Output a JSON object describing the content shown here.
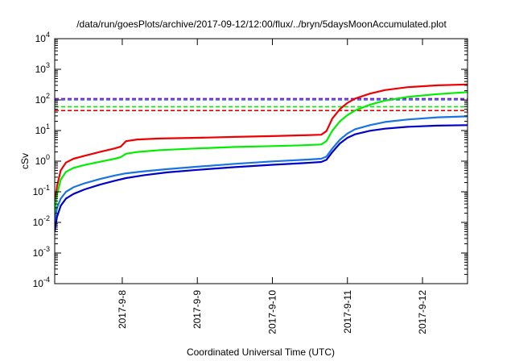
{
  "chart_data": {
    "type": "line",
    "title": "/data/run/goesPlots/archive/2017-09-12/12:00/flux/../bryn/5daysMoonAccumulated.plot",
    "xlabel": "Coordinated Universal Time (UTC)",
    "ylabel": "cSv",
    "yscale": "log",
    "ylim": [
      0.0001,
      10000
    ],
    "xlim": [
      7.1,
      12.6
    ],
    "x_ticks": [
      {
        "value": 8,
        "label": "2017-9-8"
      },
      {
        "value": 9,
        "label": "2017-9-9"
      },
      {
        "value": 10,
        "label": "2017-9-10"
      },
      {
        "value": 11,
        "label": "2017-9-11"
      },
      {
        "value": 12,
        "label": "2017-9-12"
      }
    ],
    "y_ticks": [
      {
        "value": 0.0001,
        "base": "10",
        "exp": "-4"
      },
      {
        "value": 0.001,
        "base": "10",
        "exp": "-3"
      },
      {
        "value": 0.01,
        "base": "10",
        "exp": "-2"
      },
      {
        "value": 0.1,
        "base": "10",
        "exp": "-1"
      },
      {
        "value": 1,
        "base": "10",
        "exp": "0"
      },
      {
        "value": 10,
        "base": "10",
        "exp": "1"
      },
      {
        "value": 100,
        "base": "10",
        "exp": "2"
      },
      {
        "value": 1000,
        "base": "10",
        "exp": "3"
      },
      {
        "value": 10000,
        "base": "10",
        "exp": "4"
      }
    ],
    "grid": false,
    "legend": "none",
    "series": [
      {
        "color": "#ee0000",
        "points": [
          [
            7.1,
            0.03
          ],
          [
            7.13,
            0.15
          ],
          [
            7.18,
            0.5
          ],
          [
            7.25,
            0.9
          ],
          [
            7.35,
            1.2
          ],
          [
            7.5,
            1.5
          ],
          [
            7.7,
            2.0
          ],
          [
            7.9,
            2.6
          ],
          [
            7.98,
            3.0
          ],
          [
            8.05,
            4.5
          ],
          [
            8.2,
            5.1
          ],
          [
            8.5,
            5.5
          ],
          [
            9.0,
            5.8
          ],
          [
            9.5,
            6.2
          ],
          [
            10.0,
            6.6
          ],
          [
            10.4,
            7.0
          ],
          [
            10.65,
            7.3
          ],
          [
            10.72,
            9.5
          ],
          [
            10.8,
            25
          ],
          [
            10.9,
            50
          ],
          [
            11.0,
            80
          ],
          [
            11.1,
            110
          ],
          [
            11.3,
            160
          ],
          [
            11.5,
            210
          ],
          [
            11.8,
            260
          ],
          [
            12.2,
            300
          ],
          [
            12.6,
            320
          ]
        ]
      },
      {
        "color": "#00ee00",
        "points": [
          [
            7.1,
            0.02
          ],
          [
            7.13,
            0.08
          ],
          [
            7.18,
            0.25
          ],
          [
            7.25,
            0.45
          ],
          [
            7.35,
            0.6
          ],
          [
            7.5,
            0.75
          ],
          [
            7.7,
            0.95
          ],
          [
            7.9,
            1.2
          ],
          [
            7.98,
            1.35
          ],
          [
            8.05,
            1.75
          ],
          [
            8.2,
            2.0
          ],
          [
            8.5,
            2.3
          ],
          [
            9.0,
            2.6
          ],
          [
            9.5,
            2.9
          ],
          [
            10.0,
            3.1
          ],
          [
            10.4,
            3.3
          ],
          [
            10.65,
            3.5
          ],
          [
            10.72,
            4.5
          ],
          [
            10.8,
            10
          ],
          [
            10.9,
            20
          ],
          [
            11.0,
            32
          ],
          [
            11.1,
            45
          ],
          [
            11.3,
            70
          ],
          [
            11.5,
            95
          ],
          [
            11.8,
            125
          ],
          [
            12.2,
            155
          ],
          [
            12.6,
            180
          ]
        ]
      },
      {
        "color": "#1874e0",
        "points": [
          [
            7.1,
            0.01
          ],
          [
            7.13,
            0.03
          ],
          [
            7.18,
            0.06
          ],
          [
            7.25,
            0.1
          ],
          [
            7.35,
            0.14
          ],
          [
            7.5,
            0.19
          ],
          [
            7.7,
            0.26
          ],
          [
            7.9,
            0.34
          ],
          [
            8.05,
            0.4
          ],
          [
            8.3,
            0.47
          ],
          [
            8.6,
            0.55
          ],
          [
            9.0,
            0.66
          ],
          [
            9.5,
            0.82
          ],
          [
            10.0,
            0.98
          ],
          [
            10.4,
            1.1
          ],
          [
            10.65,
            1.2
          ],
          [
            10.72,
            1.4
          ],
          [
            10.8,
            2.6
          ],
          [
            10.9,
            5.0
          ],
          [
            11.0,
            8.0
          ],
          [
            11.1,
            11
          ],
          [
            11.3,
            15
          ],
          [
            11.5,
            19
          ],
          [
            11.8,
            23
          ],
          [
            12.2,
            27
          ],
          [
            12.6,
            29
          ]
        ]
      },
      {
        "color": "#0000cc",
        "points": [
          [
            7.1,
            0.005
          ],
          [
            7.13,
            0.015
          ],
          [
            7.18,
            0.035
          ],
          [
            7.25,
            0.06
          ],
          [
            7.35,
            0.085
          ],
          [
            7.5,
            0.12
          ],
          [
            7.7,
            0.17
          ],
          [
            7.9,
            0.23
          ],
          [
            8.05,
            0.28
          ],
          [
            8.3,
            0.35
          ],
          [
            8.6,
            0.43
          ],
          [
            9.0,
            0.52
          ],
          [
            9.5,
            0.64
          ],
          [
            10.0,
            0.76
          ],
          [
            10.4,
            0.86
          ],
          [
            10.65,
            0.94
          ],
          [
            10.72,
            1.1
          ],
          [
            10.8,
            2.0
          ],
          [
            10.9,
            3.8
          ],
          [
            11.0,
            5.8
          ],
          [
            11.1,
            7.5
          ],
          [
            11.3,
            9.8
          ],
          [
            11.5,
            11.5
          ],
          [
            11.8,
            13.2
          ],
          [
            12.2,
            14.5
          ],
          [
            12.6,
            15
          ]
        ]
      }
    ],
    "thresholds": [
      {
        "value": 110,
        "color": "#9900cc"
      },
      {
        "value": 100,
        "color": "#1874e0"
      },
      {
        "value": 60,
        "color": "#00ee00"
      },
      {
        "value": 45,
        "color": "#ee0000"
      }
    ]
  }
}
